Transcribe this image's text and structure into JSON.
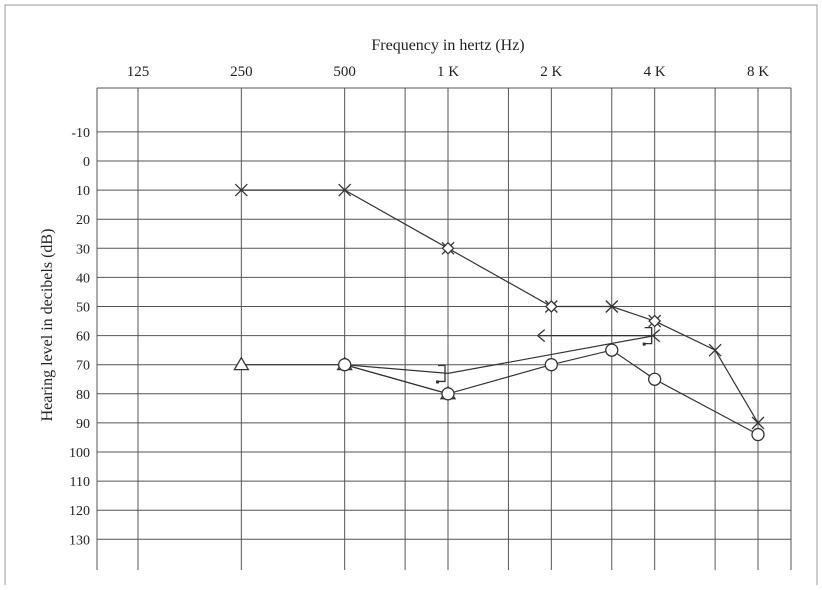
{
  "chart_data": {
    "type": "line",
    "title": "",
    "xlabel": "Frequency in hertz (Hz)",
    "ylabel": "Hearing level in decibels (dB)",
    "x_scale": "log",
    "x_ticks": [
      {
        "value": 125,
        "label": "125"
      },
      {
        "value": 250,
        "label": "250"
      },
      {
        "value": 500,
        "label": "500"
      },
      {
        "value": 1000,
        "label": "1 K"
      },
      {
        "value": 2000,
        "label": "2 K"
      },
      {
        "value": 4000,
        "label": "4 K"
      },
      {
        "value": 8000,
        "label": "8 K"
      }
    ],
    "x_minor_ticks": [
      750,
      1500,
      3000,
      6000
    ],
    "xlim": [
      90,
      10000
    ],
    "y_ticks": [
      -10,
      0,
      10,
      20,
      30,
      40,
      50,
      60,
      70,
      80,
      90,
      100,
      110,
      120,
      130
    ],
    "ylim": [
      -20,
      140
    ],
    "y_inverted": true,
    "grid": true,
    "line_color": "#333333",
    "series": [
      {
        "marker": "x-icon",
        "connected": true,
        "points": [
          {
            "x": 250,
            "y": 10
          },
          {
            "x": 500,
            "y": 10
          },
          {
            "x": 1000,
            "y": 30
          },
          {
            "x": 2000,
            "y": 50
          },
          {
            "x": 3000,
            "y": 50
          },
          {
            "x": 4000,
            "y": 55
          },
          {
            "x": 6000,
            "y": 65
          },
          {
            "x": 8000,
            "y": 90
          }
        ]
      },
      {
        "marker": "diamond-icon",
        "connected": false,
        "points": [
          {
            "x": 1000,
            "y": 30
          },
          {
            "x": 2000,
            "y": 50
          },
          {
            "x": 4000,
            "y": 55
          }
        ]
      },
      {
        "marker": "triangle-icon",
        "connected": true,
        "points": [
          {
            "x": 250,
            "y": 70
          },
          {
            "x": 500,
            "y": 70
          },
          {
            "x": 1000,
            "y": 80
          }
        ]
      },
      {
        "marker": "circle-icon",
        "connected": true,
        "points": [
          {
            "x": 500,
            "y": 70
          },
          {
            "x": 1000,
            "y": 80
          },
          {
            "x": 2000,
            "y": 70
          },
          {
            "x": 3000,
            "y": 65
          },
          {
            "x": 4000,
            "y": 75
          },
          {
            "x": 8000,
            "y": 94
          }
        ]
      },
      {
        "marker": "left-chevron-icon",
        "connected": true,
        "points": [
          {
            "x": 1850,
            "y": 60
          },
          {
            "x": 4000,
            "y": 60
          }
        ]
      },
      {
        "marker": "right-bracket-icon",
        "connected": true,
        "points": [
          {
            "x": 500,
            "y": 70
          },
          {
            "x": 1000,
            "y": 73
          },
          {
            "x": 4000,
            "y": 60
          }
        ]
      }
    ]
  }
}
